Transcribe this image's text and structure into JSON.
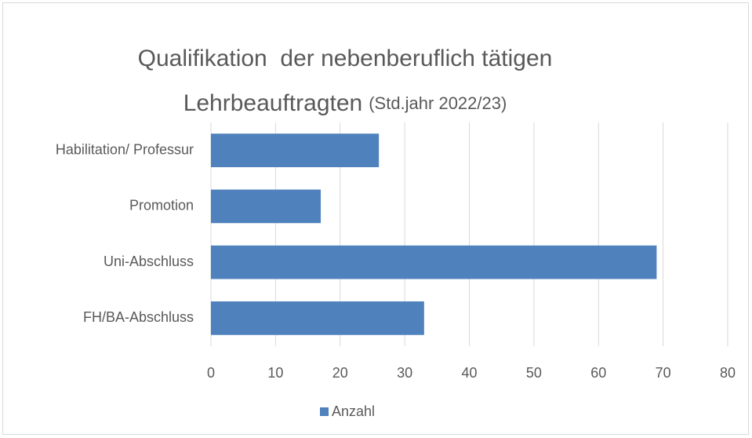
{
  "chart_data": {
    "type": "hbar",
    "title": [
      "Qualifikation  der nebenberuflich tätigen",
      "Lehrbeauftragten"
    ],
    "subtitle": "(Std.jahr 2022/23)",
    "categories": [
      "Habilitation/ Professur",
      "Promotion",
      "Uni-Abschluss",
      "FH/BA-Abschluss"
    ],
    "series": [
      {
        "name": "Anzahl",
        "color": "#4f81bd",
        "values": [
          26,
          17,
          69,
          33
        ]
      }
    ],
    "xlim": [
      0,
      80
    ],
    "xticks": [
      0,
      10,
      20,
      30,
      40,
      50,
      60,
      70,
      80
    ],
    "grid": true,
    "legend": "bottom"
  }
}
